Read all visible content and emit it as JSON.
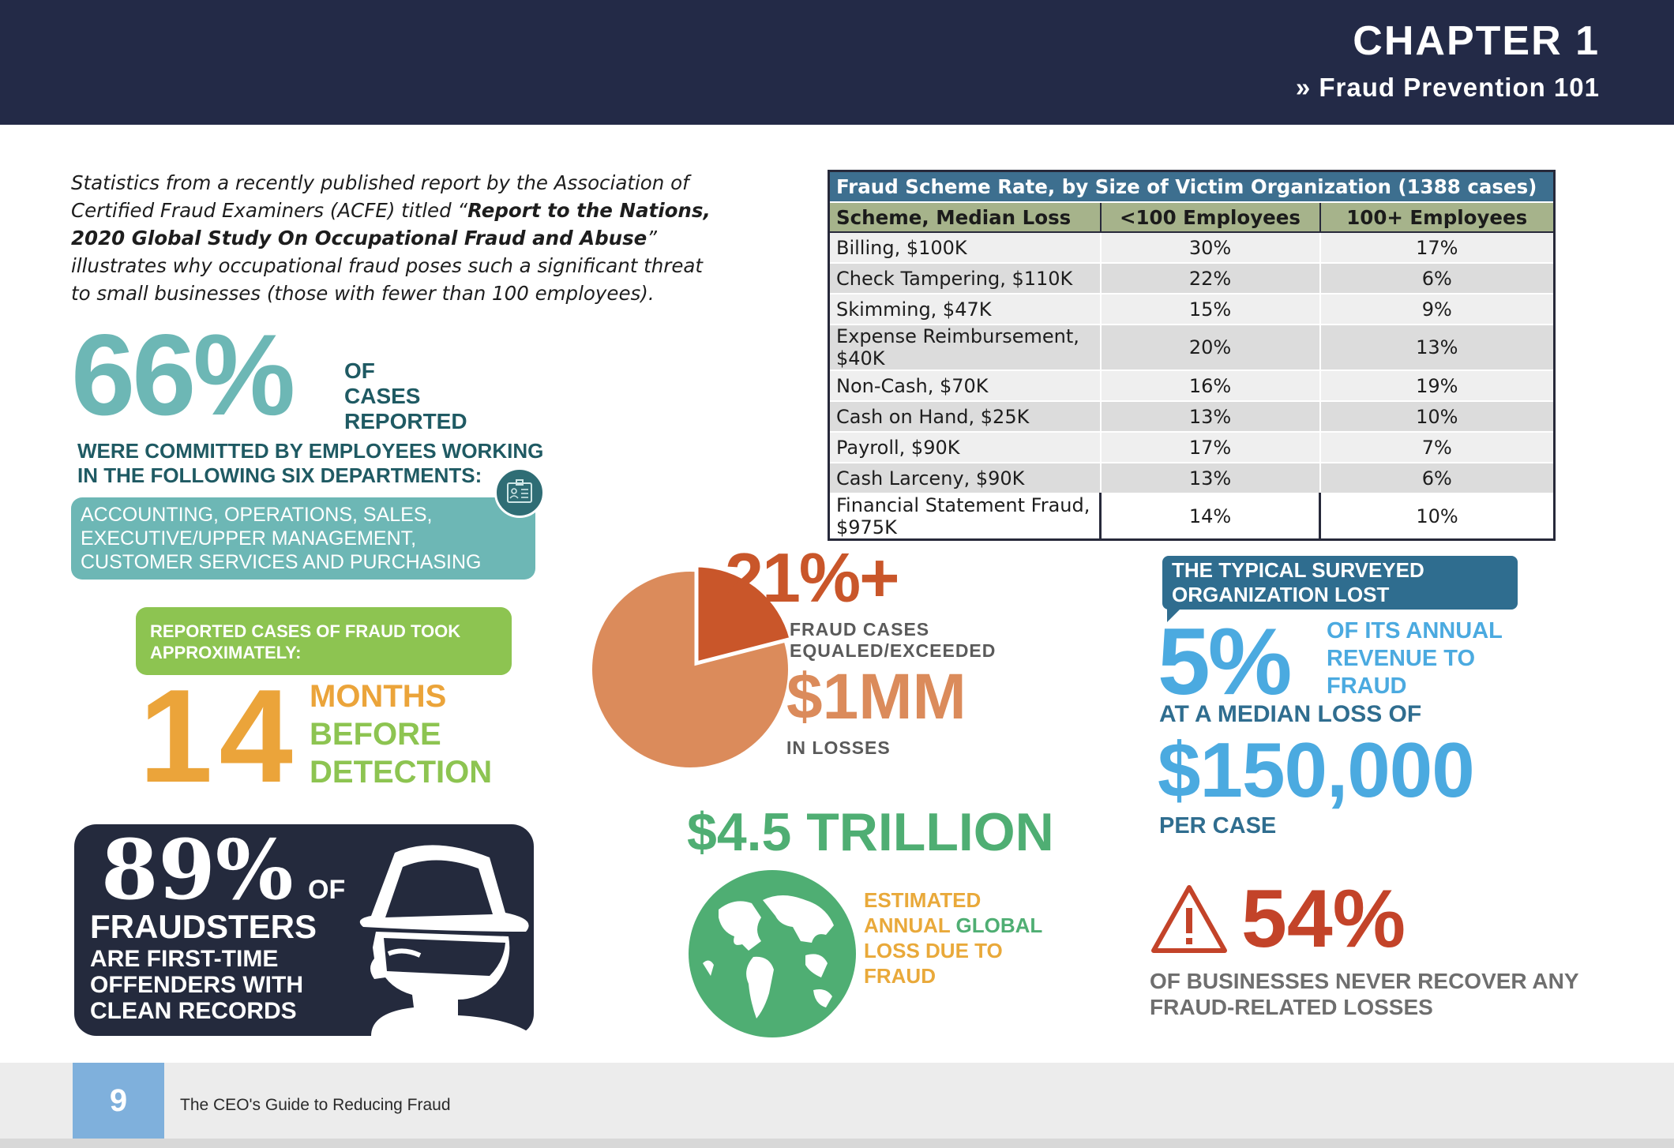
{
  "header": {
    "chapter": "CHAPTER 1",
    "subtitle": "» Fraud Prevention 101"
  },
  "intro": {
    "text_1": "Statistics from a recently published report by the Association of Certified Fraud Examiners (ACFE) titled “",
    "bold": "Report to the Nations, 2020 Global Study On Occupational Fraud and Abuse",
    "text_2": "” illustrates why occupational fraud poses such a significant threat to small businesses (those with fewer than 100 employees)."
  },
  "table": {
    "title": "Fraud Scheme Rate, by Size of Victim Organization (1388 cases)",
    "headers": [
      "Scheme, Median Loss",
      "<100 Employees",
      "100+ Employees"
    ],
    "rows": [
      [
        "Billing, $100K",
        "30%",
        "17%"
      ],
      [
        "Check Tampering, $110K",
        "22%",
        "6%"
      ],
      [
        "Skimming, $47K",
        "15%",
        "9%"
      ],
      [
        "Expense Reimbursement, $40K",
        "20%",
        "13%"
      ],
      [
        "Non-Cash, $70K",
        "16%",
        "19%"
      ],
      [
        "Cash on Hand, $25K",
        "13%",
        "10%"
      ],
      [
        "Payroll, $90K",
        "17%",
        "7%"
      ],
      [
        "Cash Larceny, $90K",
        "13%",
        "6%"
      ],
      [
        "Financial Statement Fraud, $975K",
        "14%",
        "10%"
      ]
    ]
  },
  "stat66": {
    "value": "66%",
    "of_cases": [
      "OF",
      "CASES",
      "REPORTED"
    ],
    "committed": "WERE COMMITTED BY EMPLOYEES WORKING IN THE FOLLOWING SIX DEPARTMENTS:",
    "departments": [
      "ACCOUNTING, OPERATIONS, SALES,",
      "EXECUTIVE/UPPER MANAGEMENT,",
      "CUSTOMER SERVICES AND PURCHASING"
    ]
  },
  "stat14": {
    "tag": [
      "REPORTED CASES OF FRAUD TOOK",
      "APPROXIMATELY:"
    ],
    "value": "14",
    "months": "MONTHS",
    "before": "BEFORE",
    "detection": "DETECTION"
  },
  "stat89": {
    "value": "89%",
    "of": "OF",
    "fraudsters": "FRAUDSTERS",
    "lines": [
      "ARE FIRST-TIME",
      "OFFENDERS WITH",
      "CLEAN RECORDS"
    ]
  },
  "stat21": {
    "value": "21%+",
    "label": [
      "FRAUD CASES",
      "EQUALED/EXCEEDED"
    ],
    "amount": "$1MM",
    "in_losses": "IN LOSSES",
    "slice_fraction": 0.21
  },
  "trillion": {
    "value": "$4.5 TRILLION",
    "label_1": "ESTIMATED",
    "label_2a": "ANNUAL ",
    "label_2b": "GLOBAL",
    "label_3": "LOSS DUE TO",
    "label_4": "FRAUD"
  },
  "stat5": {
    "tag": [
      "THE TYPICAL SURVEYED",
      "ORGANIZATION LOST"
    ],
    "value": "5%",
    "annual": [
      "OF ITS ANNUAL",
      "REVENUE TO",
      "FRAUD"
    ],
    "median": "AT A MEDIAN LOSS OF",
    "amount": "$150,000",
    "per_case": "PER CASE"
  },
  "stat54": {
    "value": "54%",
    "label": [
      "OF BUSINESSES NEVER RECOVER ANY",
      "FRAUD-RELATED LOSSES"
    ]
  },
  "footer": {
    "page": "9",
    "guide": "The CEO's Guide to Reducing Fraud"
  },
  "colors": {
    "navy": "#232a47",
    "teal": "#6db7b5",
    "green": "#8dc451",
    "orange": "#eba43a",
    "rust": "#c9562a",
    "blue": "#4baae0",
    "red": "#c34329",
    "globe_green": "#4fae73"
  }
}
